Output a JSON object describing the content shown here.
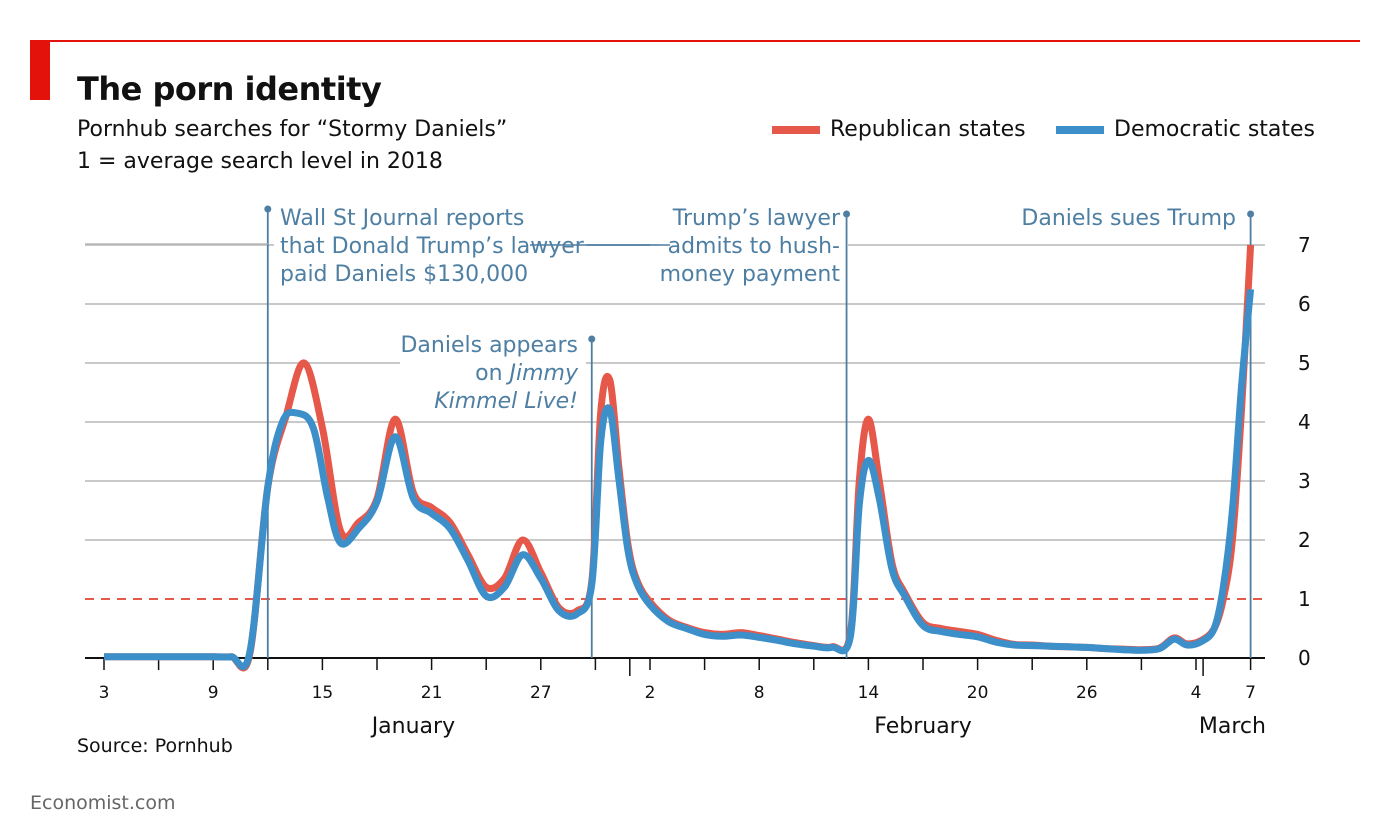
{
  "header": {
    "title": "The porn identity",
    "subtitle_line1": "Pornhub searches for “Stormy Daniels”",
    "subtitle_line2": "1 = average search level in 2018"
  },
  "legend": {
    "republican": "Republican states",
    "democratic": "Democratic states"
  },
  "footer": {
    "source": "Source: Pornhub",
    "credit": "Economist.com"
  },
  "colors": {
    "republican": "#e6584a",
    "democratic": "#3d8fc9",
    "reference_line": "#e6584a",
    "annotation": "#4e7fa3",
    "grid": "#b7b7b7",
    "brand_red": "#e3120b"
  },
  "chart_data": {
    "type": "line",
    "title": "The porn identity",
    "subtitle": "Pornhub searches for “Stormy Daniels”; 1 = average search level in 2018",
    "ylim": [
      0,
      7
    ],
    "yticks": [
      0,
      1,
      2,
      3,
      4,
      5,
      6,
      7
    ],
    "xlim": [
      3,
      67
    ],
    "xticks": [
      {
        "day": 3,
        "label": "3"
      },
      {
        "day": 9,
        "label": "9"
      },
      {
        "day": 15,
        "label": "15"
      },
      {
        "day": 21,
        "label": "21"
      },
      {
        "day": 27,
        "label": "27"
      },
      {
        "day": 33,
        "label": "2"
      },
      {
        "day": 39,
        "label": "8"
      },
      {
        "day": 45,
        "label": "14"
      },
      {
        "day": 51,
        "label": "20"
      },
      {
        "day": 57,
        "label": "26"
      },
      {
        "day": 63,
        "label": "4"
      },
      {
        "day": 66,
        "label": "7"
      }
    ],
    "months": [
      {
        "label": "January",
        "day": 20
      },
      {
        "label": "February",
        "day": 48
      },
      {
        "label": "March",
        "day": 65
      }
    ],
    "reference_line": {
      "y": 1,
      "style": "dashed"
    },
    "grid": true,
    "legend_position": "top-right",
    "series": [
      {
        "name": "Republican states",
        "color_key": "republican",
        "points": [
          [
            3,
            0.02
          ],
          [
            4,
            0.02
          ],
          [
            5,
            0.02
          ],
          [
            6,
            0.02
          ],
          [
            7,
            0.02
          ],
          [
            8,
            0.02
          ],
          [
            9,
            0.02
          ],
          [
            10,
            0.02
          ],
          [
            11,
            0.05
          ],
          [
            12,
            2.9
          ],
          [
            13,
            4.1
          ],
          [
            14,
            5.0
          ],
          [
            15,
            3.9
          ],
          [
            16,
            2.15
          ],
          [
            17,
            2.3
          ],
          [
            18,
            2.7
          ],
          [
            19,
            4.05
          ],
          [
            20,
            2.8
          ],
          [
            21,
            2.55
          ],
          [
            22,
            2.3
          ],
          [
            23,
            1.75
          ],
          [
            24,
            1.2
          ],
          [
            25,
            1.35
          ],
          [
            26,
            2.0
          ],
          [
            27,
            1.45
          ],
          [
            28,
            0.85
          ],
          [
            29,
            0.8
          ],
          [
            29.8,
            1.3
          ],
          [
            30.3,
            4.2
          ],
          [
            30.8,
            4.7
          ],
          [
            31.3,
            3.2
          ],
          [
            31.8,
            1.9
          ],
          [
            32.3,
            1.3
          ],
          [
            33,
            0.95
          ],
          [
            34,
            0.65
          ],
          [
            35,
            0.52
          ],
          [
            36,
            0.43
          ],
          [
            37,
            0.4
          ],
          [
            38,
            0.43
          ],
          [
            39,
            0.38
          ],
          [
            40,
            0.32
          ],
          [
            41,
            0.26
          ],
          [
            42,
            0.21
          ],
          [
            43,
            0.19
          ],
          [
            44,
            0.4
          ],
          [
            44.5,
            3.0
          ],
          [
            45,
            4.05
          ],
          [
            45.6,
            3.0
          ],
          [
            46.3,
            1.6
          ],
          [
            47,
            1.1
          ],
          [
            48,
            0.6
          ],
          [
            49,
            0.5
          ],
          [
            50,
            0.45
          ],
          [
            51,
            0.4
          ],
          [
            52,
            0.3
          ],
          [
            53,
            0.23
          ],
          [
            54,
            0.22
          ],
          [
            55,
            0.2
          ],
          [
            56,
            0.19
          ],
          [
            57,
            0.18
          ],
          [
            58,
            0.16
          ],
          [
            59,
            0.15
          ],
          [
            60,
            0.14
          ],
          [
            61,
            0.17
          ],
          [
            61.8,
            0.34
          ],
          [
            62.5,
            0.24
          ],
          [
            63.3,
            0.3
          ],
          [
            64,
            0.5
          ],
          [
            64.5,
            1.0
          ],
          [
            65,
            2.0
          ],
          [
            65.5,
            4.2
          ],
          [
            66,
            7.0
          ]
        ]
      },
      {
        "name": "Democratic states",
        "color_key": "democratic",
        "points": [
          [
            3,
            0.02
          ],
          [
            4,
            0.02
          ],
          [
            5,
            0.02
          ],
          [
            6,
            0.02
          ],
          [
            7,
            0.02
          ],
          [
            8,
            0.02
          ],
          [
            9,
            0.02
          ],
          [
            10,
            0.02
          ],
          [
            11,
            0.08
          ],
          [
            12,
            2.9
          ],
          [
            12.8,
            4.0
          ],
          [
            13.6,
            4.15
          ],
          [
            14.5,
            3.9
          ],
          [
            15.3,
            2.7
          ],
          [
            16,
            1.95
          ],
          [
            17,
            2.2
          ],
          [
            18,
            2.65
          ],
          [
            19,
            3.75
          ],
          [
            20,
            2.7
          ],
          [
            21,
            2.45
          ],
          [
            22,
            2.2
          ],
          [
            23,
            1.65
          ],
          [
            24,
            1.05
          ],
          [
            25,
            1.2
          ],
          [
            26,
            1.75
          ],
          [
            27,
            1.35
          ],
          [
            28,
            0.8
          ],
          [
            29,
            0.75
          ],
          [
            29.8,
            1.25
          ],
          [
            30.3,
            3.7
          ],
          [
            30.8,
            4.2
          ],
          [
            31.3,
            3.0
          ],
          [
            31.8,
            1.8
          ],
          [
            32.3,
            1.25
          ],
          [
            33,
            0.9
          ],
          [
            34,
            0.62
          ],
          [
            35,
            0.5
          ],
          [
            36,
            0.4
          ],
          [
            37,
            0.37
          ],
          [
            38,
            0.39
          ],
          [
            39,
            0.35
          ],
          [
            40,
            0.3
          ],
          [
            41,
            0.24
          ],
          [
            42,
            0.2
          ],
          [
            43,
            0.18
          ],
          [
            44,
            0.35
          ],
          [
            44.5,
            2.6
          ],
          [
            45,
            3.35
          ],
          [
            45.6,
            2.7
          ],
          [
            46.3,
            1.5
          ],
          [
            47,
            1.05
          ],
          [
            48,
            0.55
          ],
          [
            49,
            0.45
          ],
          [
            50,
            0.4
          ],
          [
            51,
            0.36
          ],
          [
            52,
            0.27
          ],
          [
            53,
            0.22
          ],
          [
            54,
            0.21
          ],
          [
            55,
            0.2
          ],
          [
            56,
            0.19
          ],
          [
            57,
            0.18
          ],
          [
            58,
            0.16
          ],
          [
            59,
            0.14
          ],
          [
            60,
            0.13
          ],
          [
            61,
            0.16
          ],
          [
            61.8,
            0.32
          ],
          [
            62.5,
            0.22
          ],
          [
            63.3,
            0.28
          ],
          [
            64,
            0.5
          ],
          [
            64.5,
            1.2
          ],
          [
            65,
            2.5
          ],
          [
            65.5,
            4.6
          ],
          [
            66,
            6.25
          ]
        ]
      }
    ],
    "annotations": [
      {
        "id": "wsj",
        "day": 12,
        "lines": [
          "Wall St Journal reports",
          "that Donald Trump’s lawyer",
          "paid Daniels $130,000"
        ],
        "italic_last": 0
      },
      {
        "id": "kimmel",
        "day": 29.8,
        "lines": [
          "Daniels appears",
          "on Jimmy",
          "Kimmel Live!"
        ],
        "italic_last": 2
      },
      {
        "id": "lawyer",
        "day": 43.8,
        "lines": [
          "Trump’s lawyer",
          "admits to hush-",
          "money payment"
        ],
        "italic_last": 0
      },
      {
        "id": "sues",
        "day": 66,
        "lines": [
          "Daniels sues Trump"
        ],
        "italic_last": 0
      }
    ]
  }
}
